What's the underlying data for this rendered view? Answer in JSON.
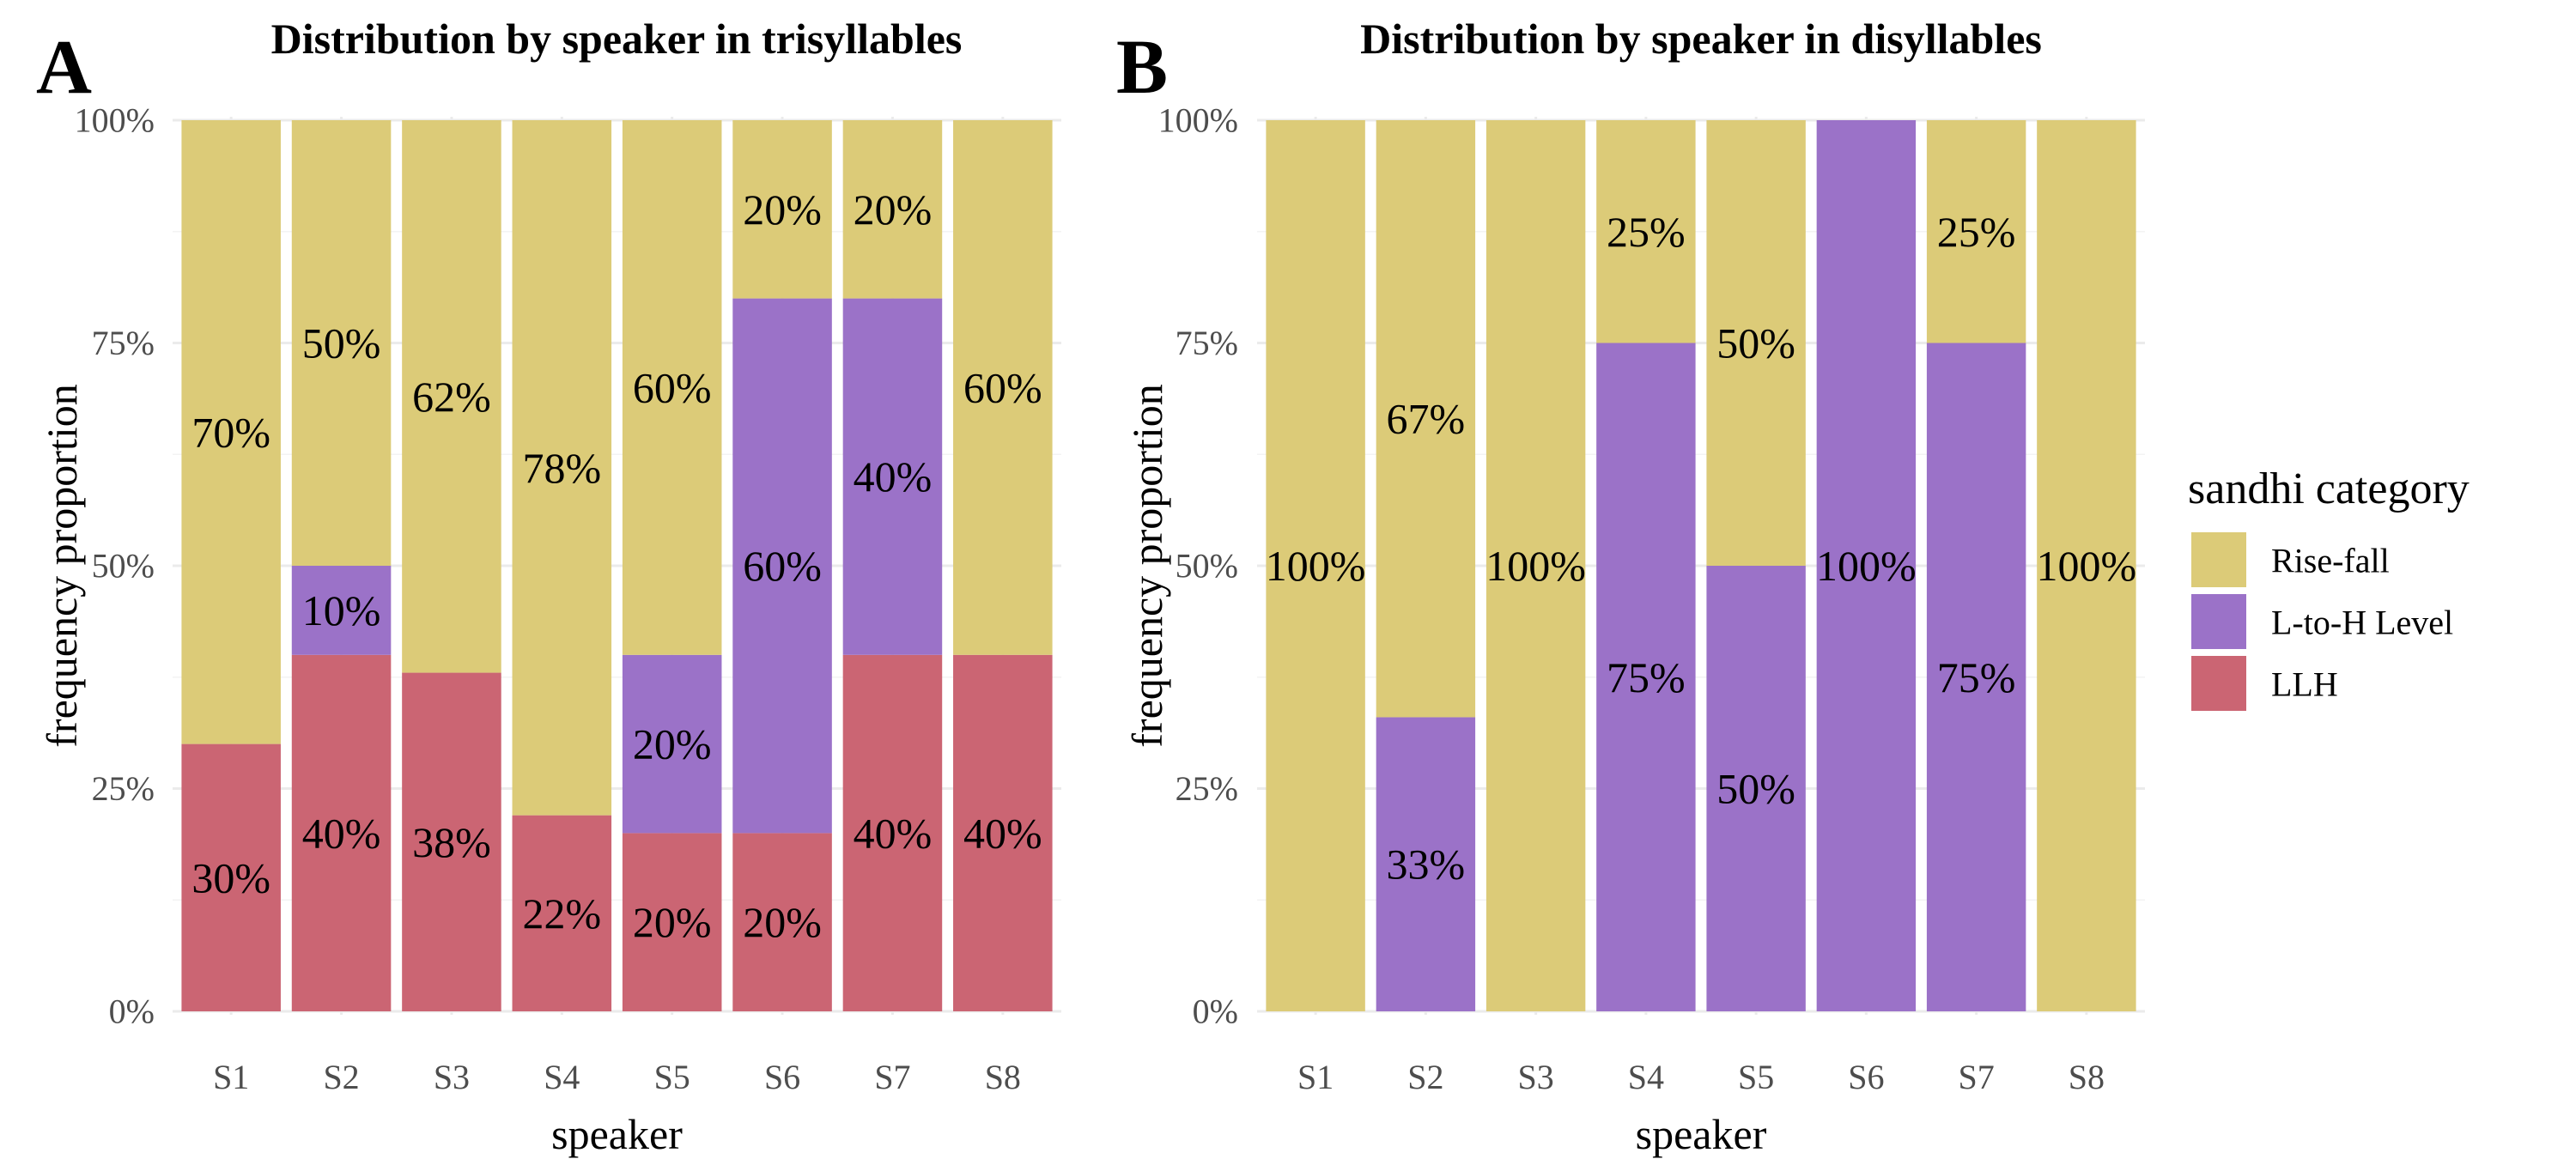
{
  "colors": {
    "Rise-fall": "#dccb78",
    "L-to-H Level": "#9b72c8",
    "LLH": "#cb6573"
  },
  "legend": {
    "title": "sandhi category",
    "items": [
      "Rise-fall",
      "L-to-H Level",
      "LLH"
    ]
  },
  "chart_data": [
    {
      "type": "bar",
      "stacked": true,
      "panel": "A",
      "title": "Distribution by speaker in trisyllables",
      "xlabel": "speaker",
      "ylabel": "frequency proportion",
      "ylim": [
        0,
        100
      ],
      "yticks": [
        "0%",
        "25%",
        "50%",
        "75%",
        "100%"
      ],
      "categories": [
        "S1",
        "S2",
        "S3",
        "S4",
        "S5",
        "S6",
        "S7",
        "S8"
      ],
      "series": [
        {
          "name": "LLH",
          "values": [
            30,
            40,
            38,
            22,
            20,
            20,
            40,
            40
          ],
          "labels": [
            "30%",
            "40%",
            "38%",
            "22%",
            "20%",
            "20%",
            "40%",
            "40%"
          ]
        },
        {
          "name": "L-to-H Level",
          "values": [
            0,
            10,
            0,
            0,
            20,
            60,
            40,
            0
          ],
          "labels": [
            "",
            "10%",
            "",
            "",
            "20%",
            "60%",
            "40%",
            ""
          ]
        },
        {
          "name": "Rise-fall",
          "values": [
            70,
            50,
            62,
            78,
            60,
            20,
            20,
            60
          ],
          "labels": [
            "70%",
            "50%",
            "62%",
            "78%",
            "60%",
            "20%",
            "20%",
            "60%"
          ]
        }
      ]
    },
    {
      "type": "bar",
      "stacked": true,
      "panel": "B",
      "title": "Distribution by speaker in disyllables",
      "xlabel": "speaker",
      "ylabel": "frequency proportion",
      "ylim": [
        0,
        100
      ],
      "yticks": [
        "0%",
        "25%",
        "50%",
        "75%",
        "100%"
      ],
      "categories": [
        "S1",
        "S2",
        "S3",
        "S4",
        "S5",
        "S6",
        "S7",
        "S8"
      ],
      "series": [
        {
          "name": "LLH",
          "values": [
            0,
            0,
            0,
            0,
            0,
            0,
            0,
            0
          ],
          "labels": [
            "",
            "",
            "",
            "",
            "",
            "",
            "",
            ""
          ]
        },
        {
          "name": "L-to-H Level",
          "values": [
            0,
            33,
            0,
            75,
            50,
            100,
            75,
            0
          ],
          "labels": [
            "",
            "33%",
            "",
            "75%",
            "50%",
            "100%",
            "75%",
            ""
          ]
        },
        {
          "name": "Rise-fall",
          "values": [
            100,
            67,
            100,
            25,
            50,
            0,
            25,
            100
          ],
          "labels": [
            "100%",
            "67%",
            "100%",
            "25%",
            "50%",
            "",
            "25%",
            "100%"
          ]
        }
      ]
    }
  ]
}
